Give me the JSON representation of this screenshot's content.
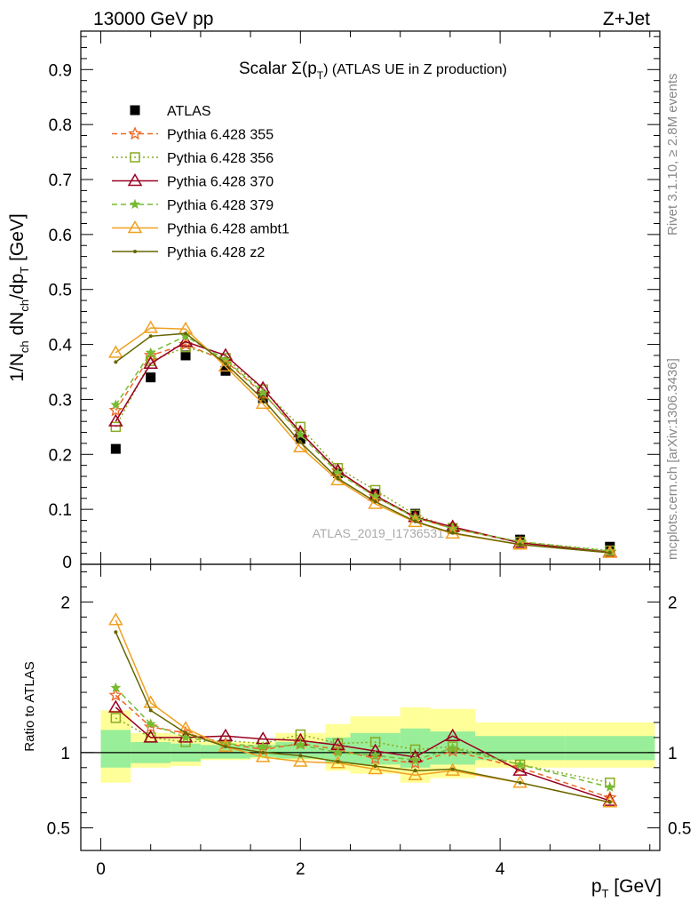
{
  "header": {
    "left": "13000 GeV pp",
    "right": "Z+Jet"
  },
  "side_labels": {
    "rivet": "Rivet 3.1.10, ≥ 2.8M events",
    "mcplots": "mcplots.cern.ch [arXiv:1306.3436]"
  },
  "chart_data": [
    {
      "type": "scatter",
      "panel": "main",
      "title_main": "Scalar Σ(p",
      "title_sub": "T",
      "title_rest": ") (ATLAS UE in Z production)",
      "watermark": "ATLAS_2019_I1736531",
      "ylabel": "1/N_ch dN_ch/dp_T [GeV]",
      "xlabel": "p_T [GeV]",
      "xlim": [
        -0.2,
        5.6
      ],
      "ylim": [
        0,
        0.97
      ],
      "xticks": [
        0,
        2,
        4
      ],
      "yticks": [
        0.1,
        0.2,
        0.3,
        0.4,
        0.5,
        0.6,
        0.7,
        0.8,
        0.9
      ],
      "ytick_labels": [
        "0.1",
        "0.2",
        "0.3",
        "0.4",
        "0.5",
        "0.6",
        "0.7",
        "0.8",
        "0.9"
      ],
      "y_zero_label": "0",
      "legend_position": "top-left",
      "x": [
        0.15,
        0.5,
        0.85,
        1.25,
        1.625,
        2.0,
        2.375,
        2.75,
        3.15,
        3.525,
        4.2,
        5.1
      ],
      "series": [
        {
          "name": "ATLAS",
          "color": "#000000",
          "marker": "filled-square",
          "line": "none",
          "values": [
            0.21,
            0.34,
            0.38,
            0.352,
            0.302,
            0.228,
            0.166,
            0.128,
            0.092,
            0.064,
            0.045,
            0.032
          ]
        },
        {
          "name": "Pythia 6.428 355",
          "color": "#ee6622",
          "marker": "star",
          "line": "dashed",
          "values": [
            0.28,
            0.38,
            0.4,
            0.37,
            0.31,
            0.24,
            0.17,
            0.123,
            0.085,
            0.065,
            0.04,
            0.022
          ]
        },
        {
          "name": "Pythia 6.428 356",
          "color": "#88aa22",
          "marker": "open-square",
          "line": "dotted",
          "values": [
            0.25,
            0.37,
            0.395,
            0.375,
            0.318,
            0.25,
            0.175,
            0.135,
            0.09,
            0.066,
            0.041,
            0.025
          ]
        },
        {
          "name": "Pythia 6.428 370",
          "color": "#990022",
          "marker": "open-triangle",
          "line": "solid",
          "values": [
            0.26,
            0.365,
            0.405,
            0.38,
            0.32,
            0.24,
            0.17,
            0.125,
            0.086,
            0.068,
            0.039,
            0.022
          ]
        },
        {
          "name": "Pythia 6.428 379",
          "color": "#77bb33",
          "marker": "small-star",
          "line": "dashed",
          "values": [
            0.29,
            0.385,
            0.415,
            0.372,
            0.312,
            0.236,
            0.166,
            0.123,
            0.085,
            0.065,
            0.041,
            0.024
          ]
        },
        {
          "name": "Pythia 6.428 ambt1",
          "color": "#f0a020",
          "marker": "open-triangle",
          "line": "solid",
          "values": [
            0.385,
            0.43,
            0.428,
            0.36,
            0.292,
            0.213,
            0.153,
            0.11,
            0.077,
            0.056,
            0.036,
            0.021
          ]
        },
        {
          "name": "Pythia 6.428 z2",
          "color": "#666600",
          "marker": "dot",
          "line": "solid",
          "values": [
            0.368,
            0.415,
            0.42,
            0.365,
            0.3,
            0.222,
            0.156,
            0.114,
            0.078,
            0.057,
            0.036,
            0.021
          ]
        }
      ]
    },
    {
      "type": "line",
      "panel": "ratio",
      "ylabel": "Ratio to ATLAS",
      "ylim": [
        0.35,
        2.25
      ],
      "yticks": [
        0.5,
        1,
        2
      ],
      "ytick_labels": [
        "0.5",
        "1",
        "2"
      ],
      "xtick_labels": [
        "0",
        "2",
        "4"
      ],
      "bands": {
        "bin_edges": [
          0.0,
          0.3,
          0.7,
          1.0,
          1.5,
          1.75,
          2.25,
          2.5,
          3.0,
          3.3,
          3.75,
          4.65,
          5.55
        ],
        "green_low": [
          0.9,
          0.93,
          0.94,
          0.96,
          0.97,
          0.96,
          0.93,
          0.92,
          0.9,
          0.92,
          0.95,
          0.95
        ],
        "green_high": [
          1.15,
          1.07,
          1.06,
          1.05,
          1.05,
          1.07,
          1.1,
          1.13,
          1.16,
          1.14,
          1.11,
          1.11
        ],
        "yellow_low": [
          0.8,
          0.9,
          0.91,
          0.95,
          0.96,
          0.95,
          0.88,
          0.86,
          0.8,
          0.83,
          0.9,
          0.9
        ],
        "yellow_high": [
          1.28,
          1.13,
          1.12,
          1.07,
          1.07,
          1.13,
          1.19,
          1.24,
          1.3,
          1.29,
          1.2,
          1.2
        ]
      },
      "series": [
        {
          "name": "Pythia 6.428 355",
          "values": [
            1.38,
            1.17,
            1.13,
            1.06,
            1.02,
            1.06,
            1.02,
            0.96,
            0.93,
            1.01,
            0.9,
            0.7
          ]
        },
        {
          "name": "Pythia 6.428 356",
          "values": [
            1.23,
            1.1,
            1.07,
            1.08,
            1.06,
            1.12,
            1.06,
            1.07,
            1.02,
            1.04,
            0.92,
            0.8
          ]
        },
        {
          "name": "Pythia 6.428 370",
          "values": [
            1.3,
            1.1,
            1.1,
            1.11,
            1.09,
            1.08,
            1.05,
            1.01,
            0.97,
            1.11,
            0.88,
            0.68
          ]
        },
        {
          "name": "Pythia 6.428 379",
          "values": [
            1.43,
            1.19,
            1.1,
            1.06,
            1.04,
            1.05,
            1.0,
            0.98,
            0.95,
            1.03,
            0.92,
            0.77
          ]
        },
        {
          "name": "Pythia 6.428 ambt1",
          "values": [
            1.88,
            1.33,
            1.16,
            1.04,
            0.97,
            0.94,
            0.93,
            0.89,
            0.85,
            0.88,
            0.8,
            0.67
          ]
        },
        {
          "name": "Pythia 6.428 z2",
          "values": [
            1.8,
            1.28,
            1.13,
            1.04,
            1.0,
            0.98,
            0.94,
            0.91,
            0.88,
            0.89,
            0.8,
            0.67
          ]
        }
      ]
    }
  ]
}
